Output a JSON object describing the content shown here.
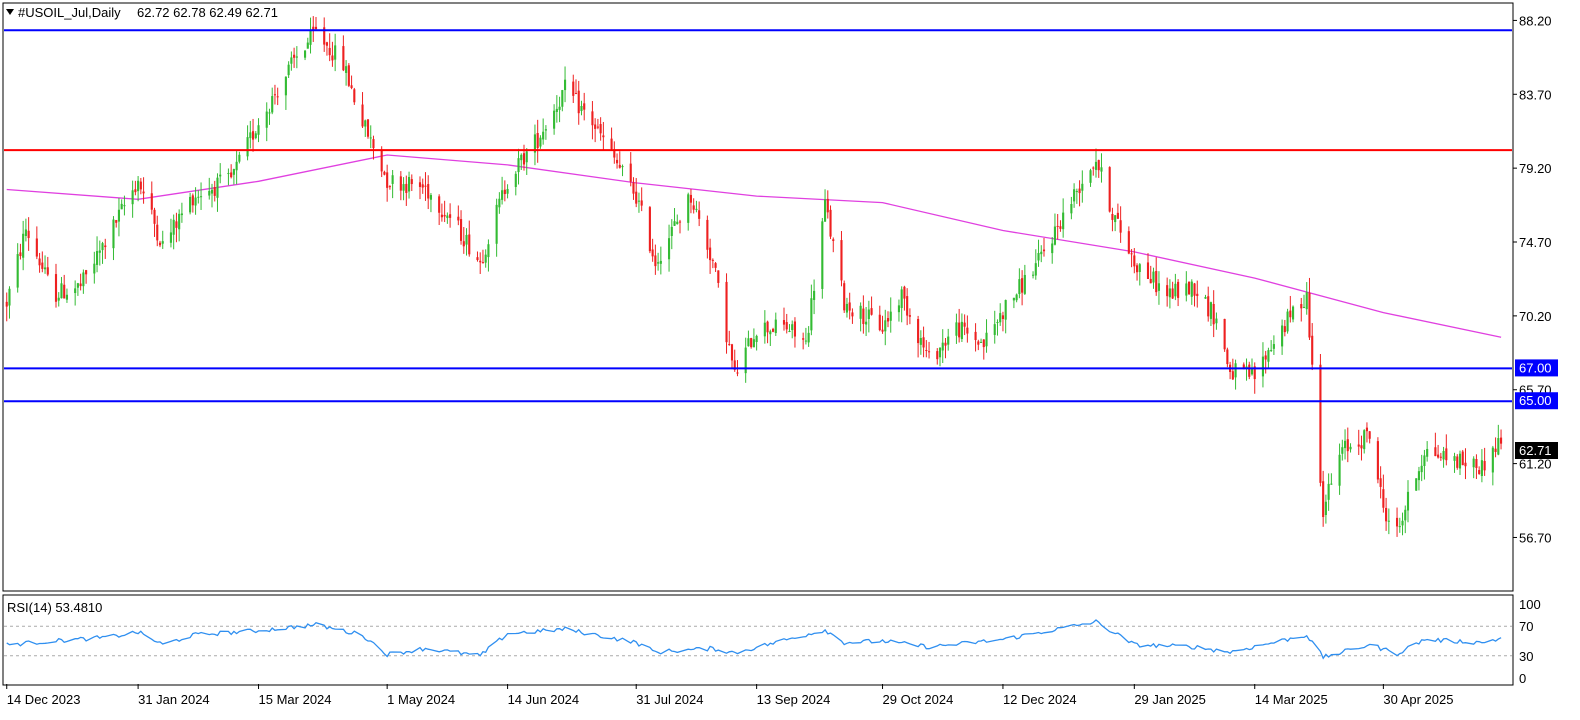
{
  "chart_data": {
    "type": "candlestick",
    "title": "#USOIL_Jul,Daily",
    "ohlc_text": "62.72 62.78 62.49 62.71",
    "timeframe": "Daily",
    "x_ticks": [
      "14 Dec 2023",
      "31 Jan 2024",
      "15 Mar 2024",
      "1 May 2024",
      "14 Jun 2024",
      "31 Jul 2024",
      "13 Sep 2024",
      "29 Oct 2024",
      "12 Dec 2024",
      "29 Jan 2025",
      "14 Mar 2025",
      "30 Apr 2025"
    ],
    "y_ticks": [
      88.2,
      83.7,
      79.2,
      74.7,
      70.2,
      65.7,
      61.2,
      56.7
    ],
    "ylim": [
      53.5,
      89.2
    ],
    "current_price": "62.71",
    "colors": {
      "up": "#33bb33",
      "down": "#ee2020",
      "ma": "#e040e0",
      "rsi": "#2f8ff0",
      "level_blue": "#0000ff",
      "level_red": "#ff0000",
      "badge_blue": "#0000ff",
      "badge_price": "#000000"
    },
    "levels": [
      {
        "value": 87.6,
        "color": "#0000ff",
        "label": ""
      },
      {
        "value": 80.3,
        "color": "#ff0000",
        "label": ""
      },
      {
        "value": 67.0,
        "color": "#0000ff",
        "label": "67.00"
      },
      {
        "value": 65.0,
        "color": "#0000ff",
        "label": "65.00"
      }
    ],
    "price_path": [
      [
        "14 Dec 2023",
        71.0
      ],
      [
        "21 Dec 2023",
        75.5
      ],
      [
        "31 Dec 2023",
        71.5
      ],
      [
        "10 Jan 2024",
        72.0
      ],
      [
        "20 Jan 2024",
        75.0
      ],
      [
        "31 Jan 2024",
        78.5
      ],
      [
        "9 Feb 2024",
        74.5
      ],
      [
        "20 Feb 2024",
        77.5
      ],
      [
        "5 Mar 2024",
        78.5
      ],
      [
        "15 Mar 2024",
        82.0
      ],
      [
        "29 Mar 2024",
        86.0
      ],
      [
        "5 Apr 2024",
        87.5
      ],
      [
        "15 Apr 2024",
        85.5
      ],
      [
        "22 Apr 2024",
        82.0
      ],
      [
        "1 May 2024",
        78.5
      ],
      [
        "15 May 2024",
        78.0
      ],
      [
        "25 May 2024",
        76.0
      ],
      [
        "4 Jun 2024",
        73.5
      ],
      [
        "14 Jun 2024",
        78.5
      ],
      [
        "25 Jun 2024",
        81.0
      ],
      [
        "5 Jul 2024",
        84.0
      ],
      [
        "15 Jul 2024",
        82.0
      ],
      [
        "31 Jul 2024",
        77.5
      ],
      [
        "7 Aug 2024",
        73.5
      ],
      [
        "20 Aug 2024",
        77.5
      ],
      [
        "28 Aug 2024",
        73.5
      ],
      [
        "5 Sep 2024",
        66.5
      ],
      [
        "13 Sep 2024",
        69.5
      ],
      [
        "24 Sep 2024",
        69.5
      ],
      [
        "1 Oct 2024",
        68.5
      ],
      [
        "8 Oct 2024",
        77.0
      ],
      [
        "15 Oct 2024",
        71.0
      ],
      [
        "29 Oct 2024",
        69.5
      ],
      [
        "5 Nov 2024",
        71.5
      ],
      [
        "15 Nov 2024",
        67.5
      ],
      [
        "25 Nov 2024",
        69.5
      ],
      [
        "5 Dec 2024",
        68.5
      ],
      [
        "12 Dec 2024",
        70.5
      ],
      [
        "25 Dec 2024",
        73.5
      ],
      [
        "10 Jan 2025",
        78.5
      ],
      [
        "15 Jan 2025",
        79.8
      ],
      [
        "21 Jan 2025",
        76.5
      ],
      [
        "29 Jan 2025",
        73.5
      ],
      [
        "10 Feb 2025",
        71.5
      ],
      [
        "20 Feb 2025",
        72.0
      ],
      [
        "28 Feb 2025",
        70.0
      ],
      [
        "5 Mar 2025",
        66.8
      ],
      [
        "14 Mar 2025",
        66.5
      ],
      [
        "22 Mar 2025",
        69.0
      ],
      [
        "2 Apr 2025",
        71.5
      ],
      [
        "4 Apr 2025",
        67.0
      ],
      [
        "8 Apr 2025",
        58.5
      ],
      [
        "15 Apr 2025",
        62.0
      ],
      [
        "25 Apr 2025",
        63.0
      ],
      [
        "30 Apr 2025",
        58.5
      ],
      [
        "5 May 2025",
        57.0
      ],
      [
        "15 May 2025",
        62.0
      ],
      [
        "25 May 2025",
        61.5
      ],
      [
        "5 Jun 2025",
        61.0
      ],
      [
        "12 Jun 2025",
        62.7
      ]
    ],
    "ma_path": [
      [
        "14 Dec 2023",
        77.9
      ],
      [
        "31 Jan 2024",
        77.3
      ],
      [
        "15 Mar 2024",
        78.4
      ],
      [
        "1 May 2024",
        80.0
      ],
      [
        "14 Jun 2024",
        79.4
      ],
      [
        "31 Jul 2024",
        78.3
      ],
      [
        "13 Sep 2024",
        77.5
      ],
      [
        "29 Oct 2024",
        77.1
      ],
      [
        "12 Dec 2024",
        75.4
      ],
      [
        "29 Jan 2025",
        74.1
      ],
      [
        "14 Mar 2025",
        72.5
      ],
      [
        "30 Apr 2025",
        70.4
      ],
      [
        "12 Jun 2025",
        68.9
      ]
    ],
    "rsi": {
      "label": "RSI(14) 53.4810",
      "ticks": [
        100,
        70,
        30,
        0
      ],
      "levels": [
        70,
        30
      ],
      "path": [
        [
          "14 Dec 2023",
          45
        ],
        [
          "31 Dec 2023",
          50
        ],
        [
          "20 Jan 2024",
          55
        ],
        [
          "31 Jan 2024",
          62
        ],
        [
          "9 Feb 2024",
          45
        ],
        [
          "20 Feb 2024",
          58
        ],
        [
          "15 Mar 2024",
          64
        ],
        [
          "5 Apr 2024",
          72
        ],
        [
          "22 Apr 2024",
          58
        ],
        [
          "1 May 2024",
          32
        ],
        [
          "15 May 2024",
          40
        ],
        [
          "4 Jun 2024",
          30
        ],
        [
          "14 Jun 2024",
          60
        ],
        [
          "5 Jul 2024",
          66
        ],
        [
          "31 Jul 2024",
          48
        ],
        [
          "7 Aug 2024",
          35
        ],
        [
          "28 Aug 2024",
          40
        ],
        [
          "5 Sep 2024",
          34
        ],
        [
          "8 Oct 2024",
          65
        ],
        [
          "15 Oct 2024",
          48
        ],
        [
          "29 Oct 2024",
          50
        ],
        [
          "15 Nov 2024",
          42
        ],
        [
          "12 Dec 2024",
          52
        ],
        [
          "15 Jan 2025",
          76
        ],
        [
          "29 Jan 2025",
          45
        ],
        [
          "20 Feb 2025",
          42
        ],
        [
          "5 Mar 2025",
          35
        ],
        [
          "2 Apr 2025",
          58
        ],
        [
          "8 Apr 2025",
          28
        ],
        [
          "25 Apr 2025",
          45
        ],
        [
          "5 May 2025",
          33
        ],
        [
          "15 May 2025",
          52
        ],
        [
          "5 Jun 2025",
          48
        ],
        [
          "12 Jun 2025",
          53.48
        ]
      ]
    }
  }
}
